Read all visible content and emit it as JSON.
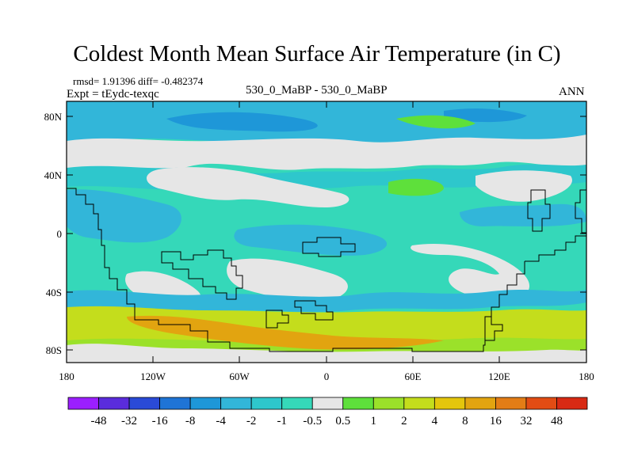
{
  "title": "Coldest Month Mean Surface Air Temperature (in C)",
  "stats": {
    "rmsd_line": "rmsd= 1.91396  diff= -0.482374"
  },
  "experiment": "Expt = tEydc-texqc",
  "comparison": "530_0_MaBP - 530_0_MaBP",
  "season": "ANN",
  "y_axis": {
    "labels": [
      "80N",
      "40N",
      "0",
      "40S",
      "80S"
    ]
  },
  "x_axis": {
    "labels": [
      "180",
      "120W",
      "60W",
      "0",
      "60E",
      "120E",
      "180"
    ]
  },
  "colorbar": {
    "colors": [
      "#9b1fff",
      "#5a2cdc",
      "#2a4ad7",
      "#1f74d6",
      "#1e97d8",
      "#32b6d9",
      "#2ec7cc",
      "#35d8b9",
      "#e6e6e6",
      "#5ee03b",
      "#9be12a",
      "#c4dd1c",
      "#e4c60c",
      "#e2a410",
      "#e37d16",
      "#e24c14",
      "#d82a14"
    ],
    "labels": [
      "-48",
      "-32",
      "-16",
      "-8",
      "-4",
      "-2",
      "-1",
      "-0.5",
      "0.5",
      "1",
      "2",
      "4",
      "8",
      "16",
      "32",
      "48"
    ]
  },
  "palette": {
    "white": "#e6e6e6",
    "cyan": "#35d8b9",
    "teal": "#2ec7cc",
    "sky": "#32b6d9",
    "blue": "#1e97d8",
    "deep_blue": "#1f74d6",
    "green": "#5ee03b",
    "lime": "#9be12a",
    "yellow": "#c4dd1c",
    "orange": "#e2a410"
  }
}
